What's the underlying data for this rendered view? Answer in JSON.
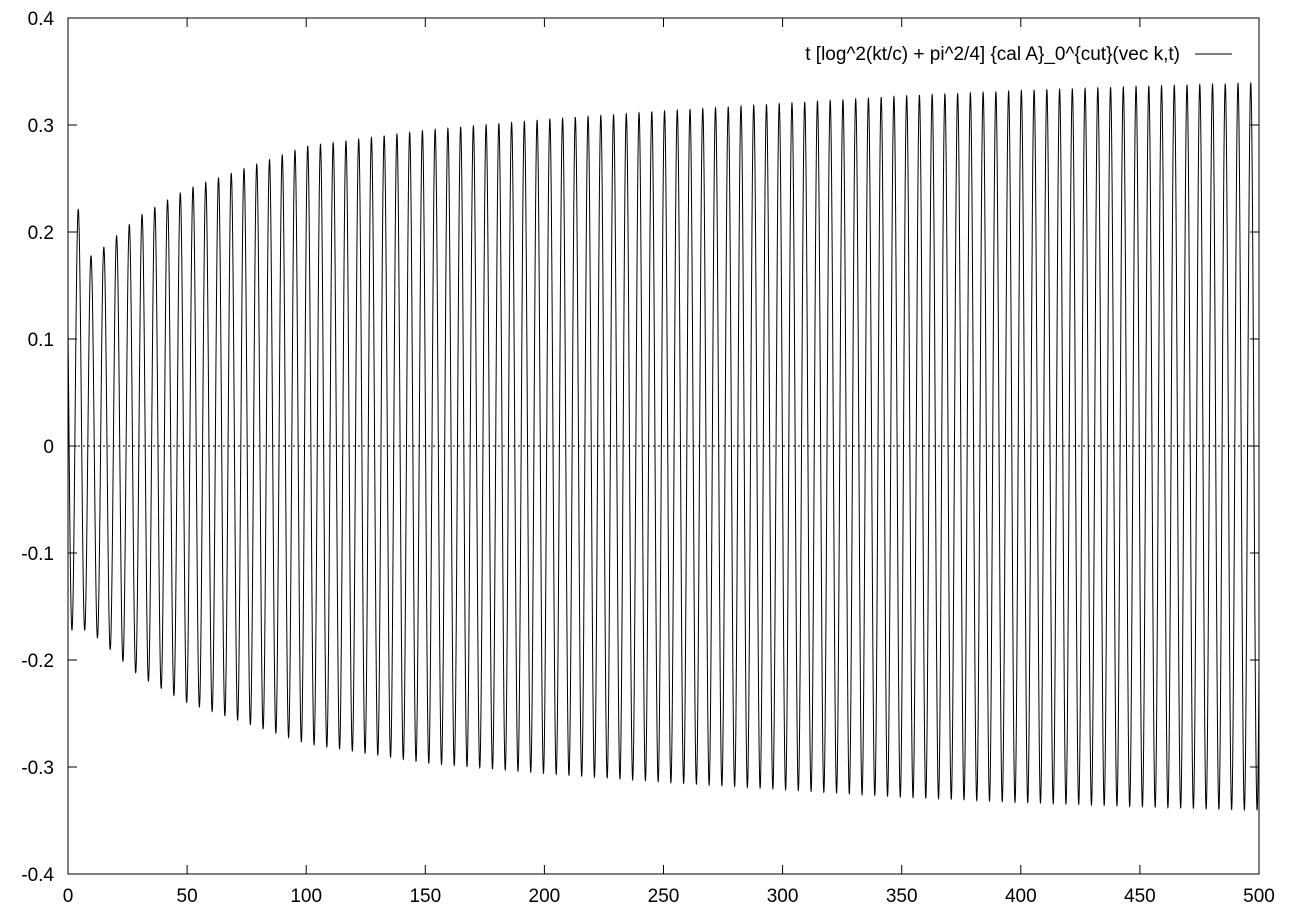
{
  "chart_data": {
    "type": "line",
    "title": "",
    "xlabel": "",
    "ylabel": "",
    "xlim": [
      0,
      500
    ],
    "ylim": [
      -0.4,
      0.4
    ],
    "x_ticks": [
      "0",
      "50",
      "100",
      "150",
      "200",
      "250",
      "300",
      "350",
      "400",
      "450",
      "500"
    ],
    "y_ticks": [
      "0.4",
      "0.3",
      "0.2",
      "0.1",
      "0",
      "-0.1",
      "-0.2",
      "-0.3",
      "-0.4"
    ],
    "grid": false,
    "zero_line": true,
    "legend_position": "top-right",
    "series": [
      {
        "name": "t [log^2(kt/c) + pi^2/4] {cal A}_0^{cut}(vec k,t)",
        "color": "#000000",
        "oscillation_period": 5.35,
        "start_value": 0.11,
        "envelope_max": {
          "x": [
            2,
            10,
            17,
            30,
            50,
            100,
            150,
            200,
            250,
            300,
            350,
            400,
            450,
            495
          ],
          "y": [
            0.24,
            0.175,
            0.19,
            0.215,
            0.24,
            0.28,
            0.295,
            0.305,
            0.313,
            0.32,
            0.327,
            0.332,
            0.336,
            0.339
          ]
        },
        "envelope_min": {
          "x": [
            7,
            13,
            20,
            30,
            50,
            100,
            150,
            200,
            250,
            300,
            350,
            400,
            450,
            495
          ],
          "y": [
            -0.172,
            -0.18,
            -0.195,
            -0.215,
            -0.24,
            -0.278,
            -0.296,
            -0.306,
            -0.314,
            -0.321,
            -0.328,
            -0.333,
            -0.337,
            -0.34
          ]
        }
      }
    ]
  }
}
